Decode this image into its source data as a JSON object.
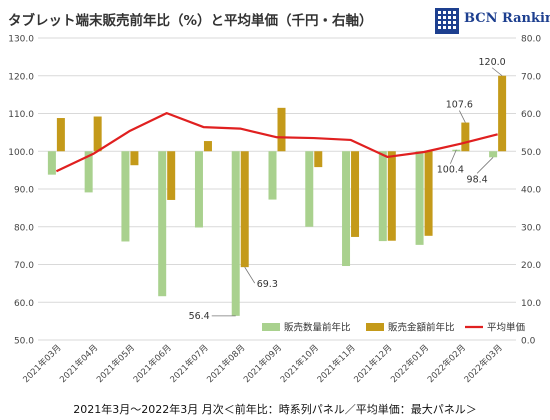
{
  "title": "タブレット端末販売前年比（%）と平均単価（千円・右軸）",
  "logo": {
    "text": "BCN Ranking"
  },
  "caption": "2021年3月～2022年3月 月次＜前年比：時系列パネル／平均単価：最大パネル＞",
  "colors": {
    "quantity": "#a9d18e",
    "amount": "#c49a1a",
    "avg_price": "#e02020",
    "grid": "#d9d9d9",
    "logo": "#1d3f8f"
  },
  "chart_data": {
    "type": "bar",
    "categories": [
      "2021年03月",
      "2021年04月",
      "2021年05月",
      "2021年06月",
      "2021年07月",
      "2021年08月",
      "2021年09月",
      "2021年10月",
      "2021年11月",
      "2021年12月",
      "2022年01月",
      "2022年02月",
      "2022年03月"
    ],
    "series": [
      {
        "name": "販売数量前年比",
        "type": "bar",
        "axis": "left",
        "values": [
          93.8,
          89.1,
          76.1,
          61.6,
          79.8,
          56.4,
          87.2,
          80.0,
          69.6,
          76.2,
          75.2,
          100.4,
          98.4
        ]
      },
      {
        "name": "販売金額前年比",
        "type": "bar",
        "axis": "left",
        "values": [
          108.8,
          109.2,
          96.3,
          87.1,
          102.7,
          69.3,
          111.5,
          95.8,
          77.3,
          76.3,
          77.6,
          107.6,
          120.0
        ]
      },
      {
        "name": "平均単価",
        "type": "line",
        "axis": "right",
        "values": [
          44.7,
          49.3,
          55.4,
          60.1,
          56.4,
          56.0,
          53.7,
          53.5,
          53.0,
          48.5,
          49.8,
          52.0,
          54.5
        ]
      }
    ],
    "baseline": 100,
    "ylim_left": [
      50,
      130
    ],
    "yticks_left": [
      "50.0",
      "60.0",
      "70.0",
      "80.0",
      "90.0",
      "100.0",
      "110.0",
      "120.0",
      "130.0"
    ],
    "ylim_right": [
      0,
      80
    ],
    "yticks_right": [
      "0.0",
      "10.0",
      "20.0",
      "30.0",
      "40.0",
      "50.0",
      "60.0",
      "70.0",
      "80.0"
    ],
    "data_labels": [
      {
        "series": 0,
        "index": 5,
        "text": "56.4"
      },
      {
        "series": 1,
        "index": 5,
        "text": "69.3"
      },
      {
        "series": 1,
        "index": 11,
        "text": "107.6"
      },
      {
        "series": 0,
        "index": 11,
        "text": "100.4"
      },
      {
        "series": 0,
        "index": 12,
        "text": "98.4"
      },
      {
        "series": 1,
        "index": 12,
        "text": "120.0"
      }
    ],
    "grid": true,
    "legend_position": "bottom-right"
  }
}
